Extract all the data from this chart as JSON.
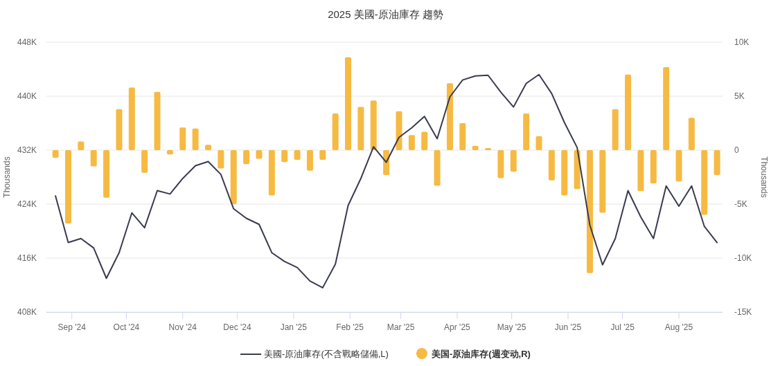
{
  "chart_data": {
    "type": "bar",
    "title": "2025 美國-原油庫存 趨勢",
    "ylabel": "Thousands",
    "y2label": "Thousands",
    "x": [
      "2024-08-23",
      "2024-08-30",
      "2024-09-06",
      "2024-09-13",
      "2024-09-20",
      "2024-09-27",
      "2024-10-04",
      "2024-10-11",
      "2024-10-18",
      "2024-10-25",
      "2024-11-01",
      "2024-11-08",
      "2024-11-15",
      "2024-11-22",
      "2024-11-29",
      "2024-12-06",
      "2024-12-13",
      "2024-12-20",
      "2024-12-27",
      "2025-01-03",
      "2025-01-10",
      "2025-01-17",
      "2025-01-24",
      "2025-01-31",
      "2025-02-07",
      "2025-02-14",
      "2025-02-21",
      "2025-02-28",
      "2025-03-07",
      "2025-03-14",
      "2025-03-21",
      "2025-03-28",
      "2025-04-04",
      "2025-04-11",
      "2025-04-18",
      "2025-04-25",
      "2025-05-02",
      "2025-05-09",
      "2025-05-16",
      "2025-05-23",
      "2025-05-30",
      "2025-06-06",
      "2025-06-13",
      "2025-06-20",
      "2025-06-27",
      "2025-07-04",
      "2025-07-11",
      "2025-07-18",
      "2025-07-25",
      "2025-08-01",
      "2025-08-08",
      "2025-08-15",
      "2025-08-22"
    ],
    "xlim": [
      "2024-08-18",
      "2025-08-25"
    ],
    "xticks": [
      {
        "value": "2024-09-01",
        "label": "Sep '24"
      },
      {
        "value": "2024-10-01",
        "label": "Oct '24"
      },
      {
        "value": "2024-11-01",
        "label": "Nov '24"
      },
      {
        "value": "2024-12-01",
        "label": "Dec '24"
      },
      {
        "value": "2025-01-01",
        "label": "Jan '25"
      },
      {
        "value": "2025-02-01",
        "label": "Feb '25"
      },
      {
        "value": "2025-03-01",
        "label": "Mar '25"
      },
      {
        "value": "2025-04-01",
        "label": "Apr '25"
      },
      {
        "value": "2025-05-01",
        "label": "May '25"
      },
      {
        "value": "2025-06-01",
        "label": "Jun '25"
      },
      {
        "value": "2025-07-01",
        "label": "Jul '25"
      },
      {
        "value": "2025-08-01",
        "label": "Aug '25"
      }
    ],
    "ylim": [
      408,
      448
    ],
    "yticks": [
      {
        "value": 408,
        "label": "408K"
      },
      {
        "value": 416,
        "label": "416K"
      },
      {
        "value": 424,
        "label": "424K"
      },
      {
        "value": 432,
        "label": "432K"
      },
      {
        "value": 440,
        "label": "440K"
      },
      {
        "value": 448,
        "label": "448K"
      }
    ],
    "y2lim": [
      -15,
      10
    ],
    "y2ticks": [
      {
        "value": -15,
        "label": "-15K"
      },
      {
        "value": -10,
        "label": "-10K"
      },
      {
        "value": -5,
        "label": "-5K"
      },
      0,
      {
        "value": 5,
        "label": "5K"
      },
      {
        "value": 10,
        "label": "10K"
      }
    ],
    "grid": "y",
    "legend": "bottom",
    "series": [
      {
        "name": "美國-原油庫存(不含戰略儲備,L)",
        "type": "line",
        "axis": "y",
        "color": "#383a4e",
        "marker": "none",
        "line_style": "solid",
        "values": [
          425.2,
          418.3,
          418.9,
          417.5,
          413.0,
          416.8,
          422.7,
          420.5,
          426.0,
          425.5,
          427.8,
          429.7,
          430.3,
          428.4,
          423.3,
          421.9,
          421.0,
          416.8,
          415.5,
          414.6,
          412.6,
          411.6,
          415.1,
          423.8,
          427.8,
          432.5,
          430.2,
          433.9,
          435.3,
          437.0,
          433.7,
          439.9,
          442.4,
          443.0,
          443.1,
          440.6,
          438.4,
          441.9,
          443.2,
          440.4,
          436.1,
          432.4,
          420.9,
          415.0,
          418.9,
          426.0,
          422.1,
          418.9,
          426.7,
          423.7,
          426.7,
          420.7,
          418.3
        ]
      },
      {
        "name": "美国-原油库存(週变动,R)",
        "axis": "y2",
        "color": "#f6ba43",
        "values": [
          -0.7,
          -6.8,
          0.8,
          -1.5,
          -4.4,
          3.8,
          5.8,
          -2.1,
          5.4,
          -0.4,
          2.1,
          2.0,
          0.5,
          -1.7,
          -5.0,
          -1.3,
          -0.8,
          -4.2,
          -1.1,
          -0.9,
          -1.9,
          -0.9,
          3.4,
          8.6,
          4.0,
          4.6,
          -2.3,
          3.6,
          1.4,
          1.7,
          -3.3,
          6.2,
          2.5,
          0.4,
          0.2,
          -2.6,
          -2.0,
          3.4,
          1.3,
          -2.8,
          -4.2,
          -3.6,
          -11.4,
          -5.8,
          3.8,
          7.0,
          -3.8,
          -3.1,
          7.7,
          -2.9,
          3.0,
          -6.0,
          -2.3
        ]
      }
    ]
  }
}
